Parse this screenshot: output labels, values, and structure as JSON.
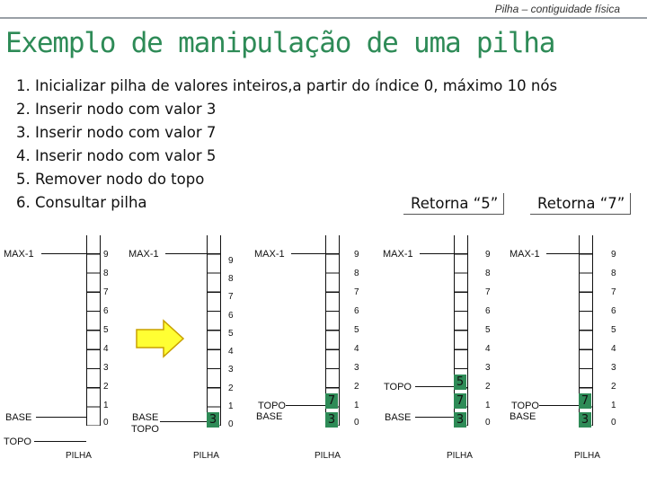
{
  "header": {
    "tag": "Pilha – contiguidade física"
  },
  "title": "Exemplo de manipulação de uma pilha",
  "steps": [
    "1. Inicializar pilha de valores inteiros,a partir do índice 0, máximo 10 nós",
    "2. Inserir nodo com valor 3",
    "3. Inserir nodo com valor 7",
    "4. Inserir nodo com valor 5",
    "5. Remover nodo do topo",
    "6. Consultar pilha"
  ],
  "returns": [
    "Retorna “5”",
    "Retorna “7”"
  ],
  "labels": {
    "max": "MAX-1",
    "base": "BASE",
    "topo": "TOPO",
    "pilha": "PILHA"
  },
  "indices": [
    "9",
    "8",
    "7",
    "6",
    "5",
    "4",
    "3",
    "2",
    "1",
    "0"
  ],
  "stacks": [
    {
      "values": []
    },
    {
      "values": [
        "3"
      ]
    },
    {
      "values": [
        "3",
        "7"
      ]
    },
    {
      "values": [
        "3",
        "7",
        "5"
      ]
    },
    {
      "values": [
        "3",
        "7"
      ]
    }
  ],
  "colors": {
    "title": "#2e8b57",
    "cell": "#2e8b57",
    "arrow_fill": "#ffff33",
    "arrow_stroke": "#c8a000"
  },
  "icons": [
    "right-arrow-icon"
  ]
}
